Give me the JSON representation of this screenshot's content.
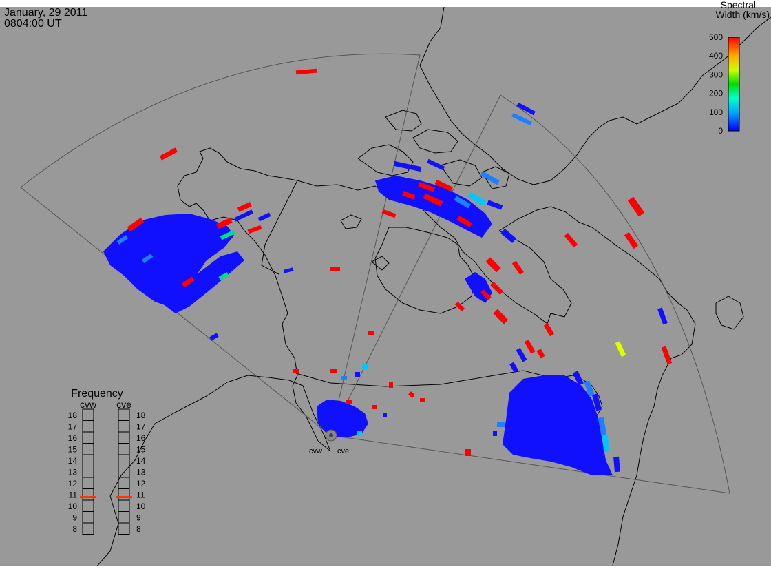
{
  "header": {
    "date": "January, 29 2011",
    "time": "0804:00 UT"
  },
  "colorbar": {
    "title_line1": "Spectral",
    "title_line2": "Width (km/s)",
    "ticks": [
      "500",
      "400",
      "300",
      "200",
      "100",
      "0"
    ],
    "min_value": 0,
    "max_value": 500
  },
  "radars": {
    "site_labels": [
      "cvw",
      "cve"
    ]
  },
  "frequency_panel": {
    "title": "Frequency",
    "radars": [
      "cvw",
      "cve"
    ],
    "ticks": [
      "18",
      "17",
      "16",
      "15",
      "14",
      "13",
      "12",
      "11",
      "10",
      "9",
      "8"
    ],
    "min_mhz": 8,
    "max_mhz": 18,
    "cvw_mhz": 10.8,
    "cve_mhz": 10.8,
    "marker_color": "#ff3300"
  },
  "colors": {
    "background": "#999999",
    "low_width": "#1010ff",
    "mid_width": "#00c8ff",
    "high_width": "#ff0000",
    "coastline": "#000000",
    "fov_outline": "#555555"
  }
}
